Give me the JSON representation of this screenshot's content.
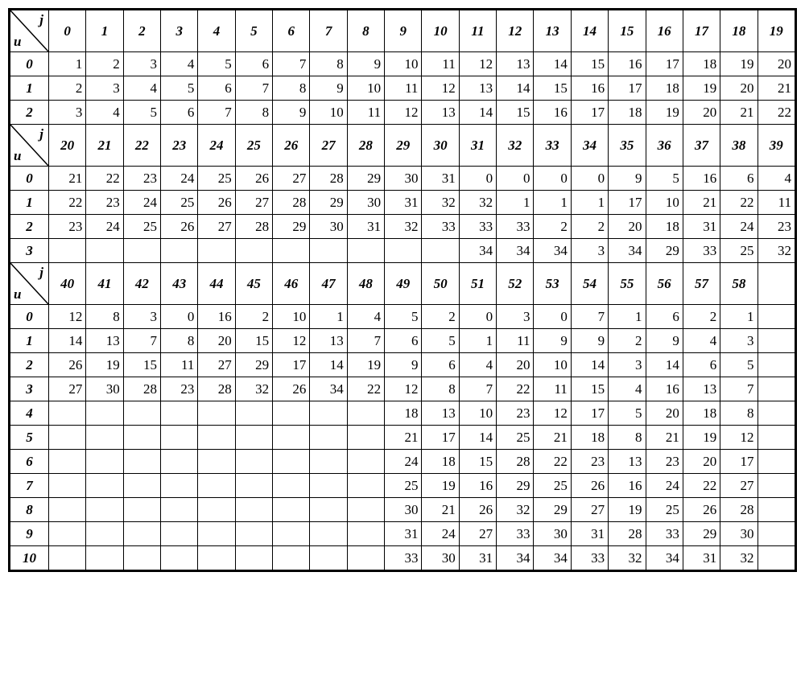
{
  "table": {
    "corner_j": "j",
    "corner_u": "u",
    "font_style": "italic bold",
    "border_color": "#000000",
    "background_color": "#ffffff",
    "cell_font_size": 17,
    "sections": [
      {
        "col_headers": [
          "0",
          "1",
          "2",
          "3",
          "4",
          "5",
          "6",
          "7",
          "8",
          "9",
          "10",
          "11",
          "12",
          "13",
          "14",
          "15",
          "16",
          "17",
          "18",
          "19"
        ],
        "rows": [
          {
            "label": "0",
            "cells": [
              "1",
              "2",
              "3",
              "4",
              "5",
              "6",
              "7",
              "8",
              "9",
              "10",
              "11",
              "12",
              "13",
              "14",
              "15",
              "16",
              "17",
              "18",
              "19",
              "20"
            ]
          },
          {
            "label": "1",
            "cells": [
              "2",
              "3",
              "4",
              "5",
              "6",
              "7",
              "8",
              "9",
              "10",
              "11",
              "12",
              "13",
              "14",
              "15",
              "16",
              "17",
              "18",
              "19",
              "20",
              "21"
            ]
          },
          {
            "label": "2",
            "cells": [
              "3",
              "4",
              "5",
              "6",
              "7",
              "8",
              "9",
              "10",
              "11",
              "12",
              "13",
              "14",
              "15",
              "16",
              "17",
              "18",
              "19",
              "20",
              "21",
              "22"
            ]
          }
        ]
      },
      {
        "col_headers": [
          "20",
          "21",
          "22",
          "23",
          "24",
          "25",
          "26",
          "27",
          "28",
          "29",
          "30",
          "31",
          "32",
          "33",
          "34",
          "35",
          "36",
          "37",
          "38",
          "39"
        ],
        "rows": [
          {
            "label": "0",
            "cells": [
              "21",
              "22",
              "23",
              "24",
              "25",
              "26",
              "27",
              "28",
              "29",
              "30",
              "31",
              "0",
              "0",
              "0",
              "0",
              "9",
              "5",
              "16",
              "6",
              "4"
            ]
          },
          {
            "label": "1",
            "cells": [
              "22",
              "23",
              "24",
              "25",
              "26",
              "27",
              "28",
              "29",
              "30",
              "31",
              "32",
              "32",
              "1",
              "1",
              "1",
              "17",
              "10",
              "21",
              "22",
              "11"
            ]
          },
          {
            "label": "2",
            "cells": [
              "23",
              "24",
              "25",
              "26",
              "27",
              "28",
              "29",
              "30",
              "31",
              "32",
              "33",
              "33",
              "33",
              "2",
              "2",
              "20",
              "18",
              "31",
              "24",
              "23"
            ]
          },
          {
            "label": "3",
            "cells": [
              "",
              "",
              "",
              "",
              "",
              "",
              "",
              "",
              "",
              "",
              "",
              "34",
              "34",
              "34",
              "3",
              "34",
              "29",
              "33",
              "25",
              "32"
            ]
          }
        ]
      },
      {
        "col_headers": [
          "40",
          "41",
          "42",
          "43",
          "44",
          "45",
          "46",
          "47",
          "48",
          "49",
          "50",
          "51",
          "52",
          "53",
          "54",
          "55",
          "56",
          "57",
          "58",
          ""
        ],
        "rows": [
          {
            "label": "0",
            "cells": [
              "12",
              "8",
              "3",
              "0",
              "16",
              "2",
              "10",
              "1",
              "4",
              "5",
              "2",
              "0",
              "3",
              "0",
              "7",
              "1",
              "6",
              "2",
              "1",
              ""
            ]
          },
          {
            "label": "1",
            "cells": [
              "14",
              "13",
              "7",
              "8",
              "20",
              "15",
              "12",
              "13",
              "7",
              "6",
              "5",
              "1",
              "11",
              "9",
              "9",
              "2",
              "9",
              "4",
              "3",
              ""
            ]
          },
          {
            "label": "2",
            "cells": [
              "26",
              "19",
              "15",
              "11",
              "27",
              "29",
              "17",
              "14",
              "19",
              "9",
              "6",
              "4",
              "20",
              "10",
              "14",
              "3",
              "14",
              "6",
              "5",
              ""
            ]
          },
          {
            "label": "3",
            "cells": [
              "27",
              "30",
              "28",
              "23",
              "28",
              "32",
              "26",
              "34",
              "22",
              "12",
              "8",
              "7",
              "22",
              "11",
              "15",
              "4",
              "16",
              "13",
              "7",
              ""
            ]
          },
          {
            "label": "4",
            "cells": [
              "",
              "",
              "",
              "",
              "",
              "",
              "",
              "",
              "",
              "18",
              "13",
              "10",
              "23",
              "12",
              "17",
              "5",
              "20",
              "18",
              "8",
              ""
            ]
          },
          {
            "label": "5",
            "cells": [
              "",
              "",
              "",
              "",
              "",
              "",
              "",
              "",
              "",
              "21",
              "17",
              "14",
              "25",
              "21",
              "18",
              "8",
              "21",
              "19",
              "12",
              ""
            ]
          },
          {
            "label": "6",
            "cells": [
              "",
              "",
              "",
              "",
              "",
              "",
              "",
              "",
              "",
              "24",
              "18",
              "15",
              "28",
              "22",
              "23",
              "13",
              "23",
              "20",
              "17",
              ""
            ]
          },
          {
            "label": "7",
            "cells": [
              "",
              "",
              "",
              "",
              "",
              "",
              "",
              "",
              "",
              "25",
              "19",
              "16",
              "29",
              "25",
              "26",
              "16",
              "24",
              "22",
              "27",
              ""
            ]
          },
          {
            "label": "8",
            "cells": [
              "",
              "",
              "",
              "",
              "",
              "",
              "",
              "",
              "",
              "30",
              "21",
              "26",
              "32",
              "29",
              "27",
              "19",
              "25",
              "26",
              "28",
              ""
            ]
          },
          {
            "label": "9",
            "cells": [
              "",
              "",
              "",
              "",
              "",
              "",
              "",
              "",
              "",
              "31",
              "24",
              "27",
              "33",
              "30",
              "31",
              "28",
              "33",
              "29",
              "30",
              ""
            ]
          },
          {
            "label": "10",
            "cells": [
              "",
              "",
              "",
              "",
              "",
              "",
              "",
              "",
              "",
              "33",
              "30",
              "31",
              "34",
              "34",
              "33",
              "32",
              "34",
              "31",
              "32",
              ""
            ]
          }
        ]
      }
    ]
  }
}
